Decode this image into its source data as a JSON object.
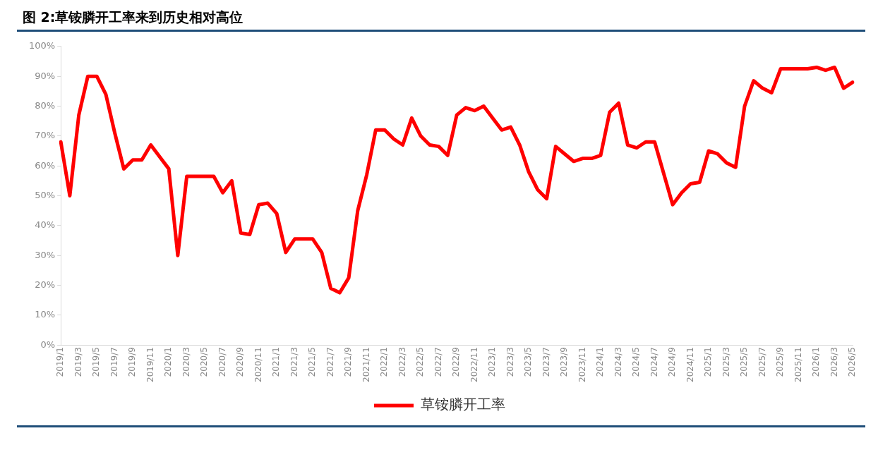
{
  "chart_data": {
    "type": "line",
    "title": "图 2:草铵膦开工率来到历史相对高位",
    "categories": [
      "2019/1",
      null,
      "2019/3",
      null,
      "2019/5",
      null,
      "2019/7",
      null,
      "2019/9",
      null,
      "2019/11",
      null,
      "2020/1",
      null,
      "2020/3",
      null,
      "2020/5",
      null,
      "2020/7",
      null,
      "2020/9",
      null,
      "2020/11",
      null,
      "2021/1",
      null,
      "2021/3",
      null,
      "2021/5",
      null,
      "2021/7",
      null,
      "2021/9",
      null,
      "2021/11",
      null,
      "2022/1",
      null,
      "2022/3",
      null,
      "2022/5",
      null,
      "2022/7",
      null,
      "2022/9",
      null,
      "2022/11",
      null,
      "2023/1",
      null,
      "2023/3",
      null,
      "2023/5",
      null,
      "2023/7",
      null,
      "2023/9",
      null,
      "2023/11",
      null,
      "2024/1",
      null,
      "2024/3",
      null,
      "2024/5",
      null,
      "2024/7",
      null,
      "2024/9",
      null,
      "2024/11",
      null,
      "2025/1",
      null,
      "2025/3",
      null,
      "2025/5",
      null,
      "2025/7",
      null,
      "2025/9",
      null,
      "2025/11",
      null,
      "2026/1",
      null,
      "2026/3",
      null,
      "2026/5"
    ],
    "series": [
      {
        "name": "草铵膦开工率",
        "color": "#ff0000",
        "values": [
          68,
          50,
          77,
          90,
          90,
          84,
          71,
          59,
          62,
          62,
          67,
          63,
          59,
          30,
          56.5,
          56.5,
          56.5,
          56.5,
          51,
          55,
          37.5,
          37,
          47,
          47.5,
          44,
          31,
          35.5,
          35.5,
          35.5,
          31,
          19,
          17.5,
          22.5,
          45,
          57,
          72,
          72,
          69,
          67,
          76,
          70,
          67,
          66.5,
          63.5,
          77,
          79.5,
          78.5,
          80,
          76,
          72,
          73,
          67,
          58,
          52,
          49,
          66.5,
          64,
          61.5,
          62.5,
          62.5,
          63.5,
          78,
          81,
          67,
          66,
          68,
          68,
          57.5,
          47,
          51,
          54,
          54.5,
          65,
          64,
          61,
          59.5,
          80,
          88.5,
          86,
          84.5,
          92.5,
          92.5,
          92.5,
          92.5,
          93,
          92,
          93,
          86,
          88
        ]
      }
    ],
    "ylim": [
      0,
      100
    ],
    "yticks": [
      {
        "value": 0,
        "label": "0%"
      },
      {
        "value": 10,
        "label": "10%"
      },
      {
        "value": 20,
        "label": "20%"
      },
      {
        "value": 30,
        "label": "30%"
      },
      {
        "value": 40,
        "label": "40%"
      },
      {
        "value": 50,
        "label": "50%"
      },
      {
        "value": 60,
        "label": "60%"
      },
      {
        "value": 70,
        "label": "70%"
      },
      {
        "value": 80,
        "label": "80%"
      },
      {
        "value": 90,
        "label": "90%"
      },
      {
        "value": 100,
        "label": "100%"
      }
    ],
    "grid": false,
    "legend": "bottom",
    "marker": "none",
    "line_style": "solid"
  }
}
